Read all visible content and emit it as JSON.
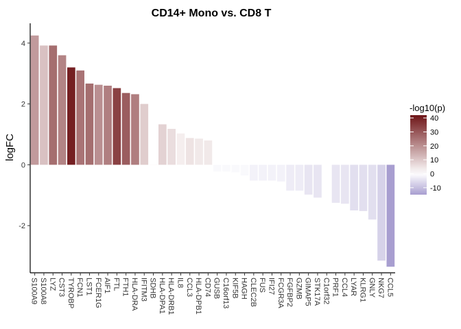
{
  "chart_data": {
    "type": "bar",
    "title": "CD14+ Mono vs. CD8 T",
    "xlabel": "",
    "ylabel": "logFC",
    "ylim": [
      -3.55,
      4.65
    ],
    "yticks": [
      -2,
      0,
      2,
      4
    ],
    "grid": false,
    "categories": [
      "S100A9",
      "S100A8",
      "LYZ",
      "CST3",
      "TYROBP",
      "FCN1",
      "LST1",
      "FCER1G",
      "AIF1",
      "FTL",
      "FTH1",
      "HLA-DRA",
      "IFITM3",
      "SDHB",
      "HLA-DPA1",
      "HLA-DRB1",
      "IL8",
      "CCL3",
      "HLA-DPB1",
      "CD74",
      "GUSB",
      "C16orf13",
      "KIF5B",
      "HAGH",
      "CLEC2B",
      "FUS",
      "IFI27",
      "FCGR3A",
      "FGFBP2",
      "GZMB",
      "GIMAP5",
      "STK17A",
      "C1orf32",
      "PRF1",
      "CCL4",
      "LYAR",
      "KLRG1",
      "GNLY",
      "NKG7",
      "CCL5"
    ],
    "values": [
      4.25,
      3.92,
      3.92,
      3.6,
      3.2,
      3.1,
      2.67,
      2.63,
      2.6,
      2.52,
      2.36,
      2.32,
      2.0,
      0.0,
      1.33,
      1.18,
      1.03,
      0.88,
      0.86,
      0.8,
      -0.22,
      -0.22,
      -0.25,
      -0.35,
      -0.52,
      -0.52,
      -0.52,
      -0.55,
      -0.85,
      -0.85,
      -0.98,
      -1.08,
      -0.02,
      -1.25,
      -1.28,
      -1.5,
      -1.52,
      -1.8,
      -3.15,
      -3.35
    ],
    "neglog10p": [
      18,
      11,
      26,
      22,
      40,
      25,
      26,
      20,
      23,
      34,
      29,
      23,
      9,
      1,
      8,
      6,
      3,
      5,
      4,
      4,
      -1,
      -1,
      -1,
      -1,
      -2,
      -2,
      -2,
      -2,
      -3,
      -3,
      -4,
      -4,
      0,
      -4,
      -4,
      -5,
      -5,
      -5,
      -7,
      -15
    ],
    "legend": {
      "title": "-log10(p)",
      "placement": "right",
      "ticks": [
        40,
        30,
        20,
        10,
        0,
        -10
      ],
      "min": -15,
      "max": 42,
      "colors": {
        "high": "#6e1417",
        "mid": "#ffffff",
        "low": "#a89ed0"
      }
    }
  }
}
